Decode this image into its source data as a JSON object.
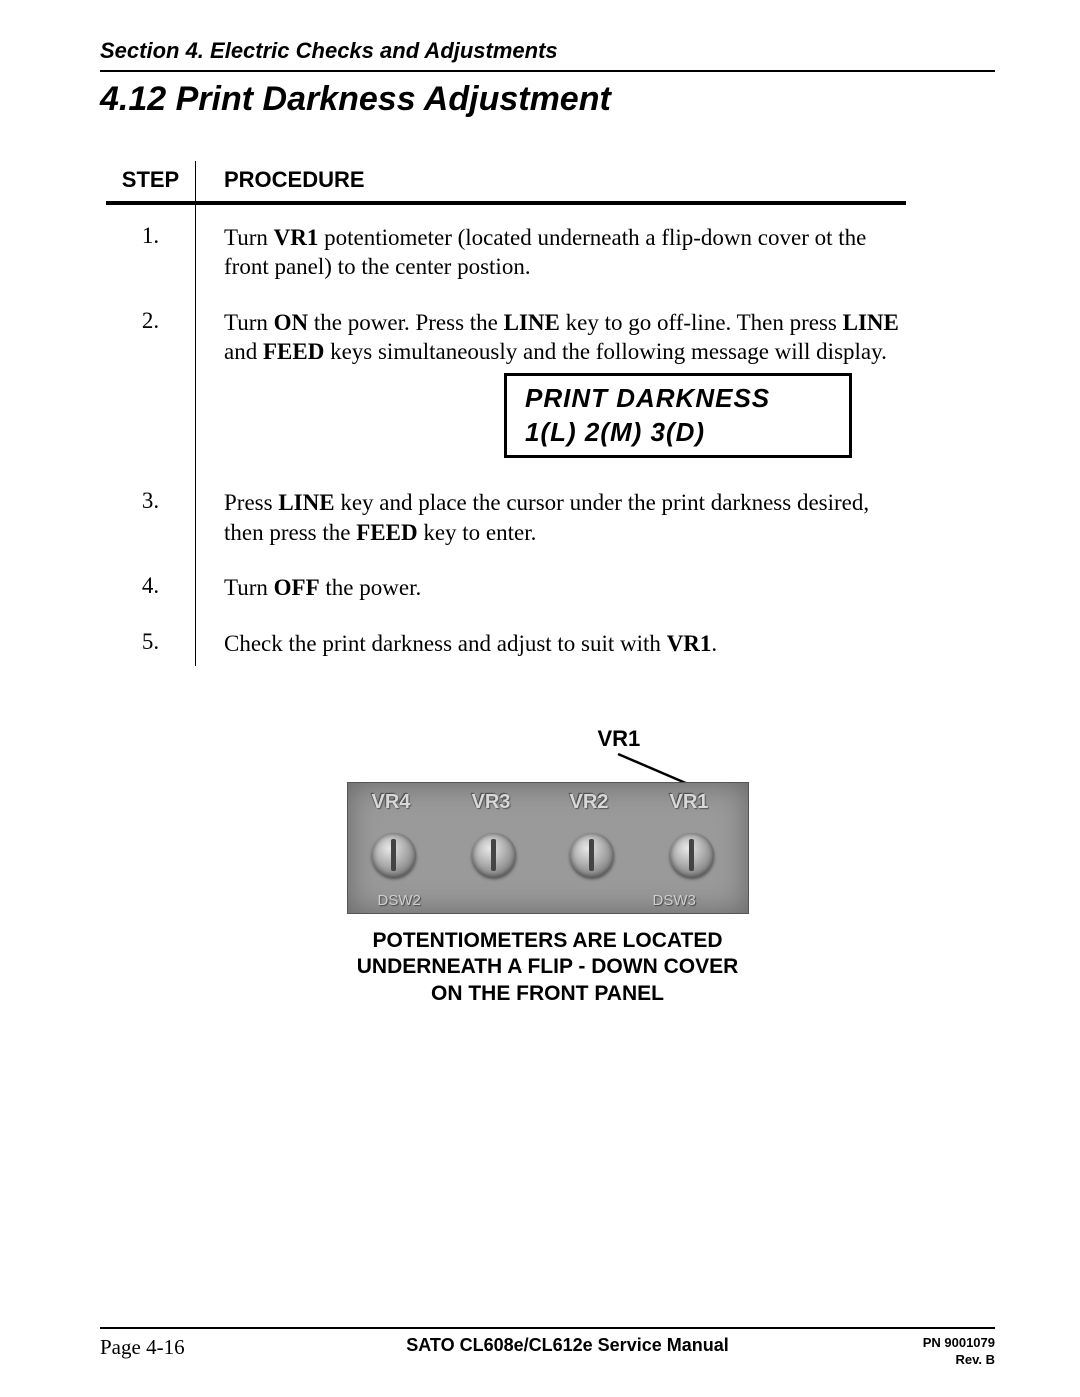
{
  "section_header": "Section 4.  Electric Checks and Adjustments",
  "title": "4.12 Print Darkness Adjustment",
  "table": {
    "step_header": "STEP",
    "proc_header": "PROCEDURE",
    "rows": [
      {
        "num": "1.",
        "html": "Turn <b>VR1</b> potentiometer (located underneath a flip-down cover ot the front panel) to the center postion."
      },
      {
        "num": "2.",
        "html": "Turn <b>ON</b> the power.  Press the <b>LINE</b> key to go off-line.  Then press <b>LINE</b> and <b>FEED</b> keys simultaneously and the following message will display."
      },
      {
        "num": "3.",
        "html": "Press <b>LINE</b> key and place the cursor under the print darkness desired, then press the <b>FEED</b> key to enter."
      },
      {
        "num": "4.",
        "html": "Turn <b>OFF</b> the power."
      },
      {
        "num": "5.",
        "html": "Check the print darkness and adjust to suit with <b>VR1</b>."
      }
    ]
  },
  "lcd": {
    "line1": "PRINT DARKNESS",
    "line2": "1(L)  2(M)  3(D)"
  },
  "figure": {
    "callout": "VR1",
    "pot_labels": [
      "VR4",
      "VR3",
      "VR2",
      "VR1"
    ],
    "caption_l1": "POTENTIOMETERS ARE LOCATED",
    "caption_l2": "UNDERNEATH A FLIP - DOWN COVER",
    "caption_l3": "ON THE FRONT PANEL"
  },
  "footer": {
    "page": "Page 4-16",
    "center": "SATO CL608e/CL612e Service Manual",
    "pn": "PN 9001079",
    "rev": "Rev. B"
  }
}
